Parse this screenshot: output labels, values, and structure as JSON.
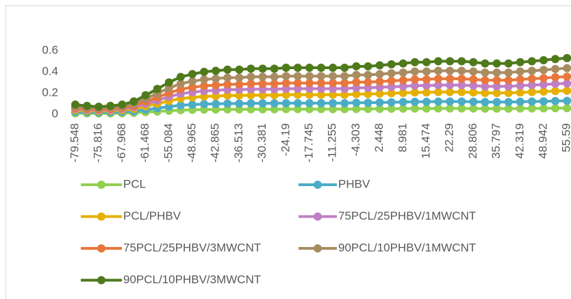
{
  "chart_data": {
    "type": "line",
    "stacked": true,
    "categories": [
      "-79.548",
      null,
      "-75.816",
      null,
      "-67.968",
      null,
      "-61.468",
      null,
      "-55.084",
      null,
      "-48.965",
      null,
      "-42.865",
      null,
      "-36.513",
      null,
      "-30.381",
      null,
      "-24.19",
      null,
      "-17.745",
      null,
      "-11.255",
      null,
      "-4.303",
      null,
      "2.448",
      null,
      "8.981",
      null,
      "15.474",
      null,
      "22.29",
      null,
      "28.806",
      null,
      "35.797",
      null,
      "42.319",
      null,
      "48.942",
      null,
      "55.59"
    ],
    "series": [
      {
        "name": "PCL",
        "color": "#92d050",
        "values": [
          0.01,
          0.009,
          0.008,
          0.009,
          0.01,
          0.013,
          0.02,
          0.026,
          0.033,
          0.039,
          0.042,
          0.044,
          0.045,
          0.046,
          0.046,
          0.047,
          0.047,
          0.047,
          0.048,
          0.048,
          0.048,
          0.048,
          0.048,
          0.048,
          0.05,
          0.05,
          0.051,
          0.052,
          0.053,
          0.054,
          0.054,
          0.055,
          0.055,
          0.055,
          0.054,
          0.053,
          0.053,
          0.053,
          0.054,
          0.055,
          0.056,
          0.057,
          0.058
        ]
      },
      {
        "name": "PHBV",
        "color": "#4bacc6",
        "values": [
          0.012,
          0.01,
          0.009,
          0.01,
          0.012,
          0.016,
          0.023,
          0.031,
          0.039,
          0.046,
          0.049,
          0.052,
          0.053,
          0.055,
          0.055,
          0.056,
          0.056,
          0.056,
          0.057,
          0.057,
          0.057,
          0.057,
          0.057,
          0.057,
          0.059,
          0.059,
          0.06,
          0.061,
          0.062,
          0.064,
          0.064,
          0.065,
          0.065,
          0.065,
          0.064,
          0.062,
          0.062,
          0.062,
          0.064,
          0.065,
          0.066,
          0.068,
          0.069
        ]
      },
      {
        "name": "PCL/PHBV",
        "color": "#e6b000",
        "values": [
          0.016,
          0.014,
          0.013,
          0.014,
          0.016,
          0.022,
          0.032,
          0.043,
          0.054,
          0.063,
          0.068,
          0.072,
          0.074,
          0.076,
          0.076,
          0.077,
          0.077,
          0.077,
          0.079,
          0.079,
          0.079,
          0.079,
          0.079,
          0.079,
          0.081,
          0.081,
          0.083,
          0.085,
          0.086,
          0.088,
          0.088,
          0.09,
          0.09,
          0.09,
          0.088,
          0.086,
          0.086,
          0.086,
          0.088,
          0.09,
          0.092,
          0.094,
          0.095
        ]
      },
      {
        "name": "75PCL/25PHBV/1MWCNT",
        "color": "#c07fc4",
        "values": [
          0.012,
          0.01,
          0.009,
          0.01,
          0.012,
          0.016,
          0.023,
          0.031,
          0.039,
          0.046,
          0.049,
          0.052,
          0.053,
          0.055,
          0.055,
          0.056,
          0.056,
          0.056,
          0.057,
          0.057,
          0.057,
          0.057,
          0.057,
          0.057,
          0.059,
          0.059,
          0.06,
          0.061,
          0.062,
          0.064,
          0.064,
          0.065,
          0.065,
          0.065,
          0.064,
          0.062,
          0.062,
          0.062,
          0.064,
          0.065,
          0.066,
          0.068,
          0.069
        ]
      },
      {
        "name": "75PCL/25PHBV/3MWCNT",
        "color": "#e8773d",
        "values": [
          0.011,
          0.01,
          0.008,
          0.01,
          0.011,
          0.014,
          0.022,
          0.029,
          0.036,
          0.042,
          0.046,
          0.048,
          0.049,
          0.05,
          0.05,
          0.052,
          0.052,
          0.052,
          0.053,
          0.053,
          0.053,
          0.053,
          0.053,
          0.053,
          0.054,
          0.054,
          0.055,
          0.056,
          0.058,
          0.059,
          0.059,
          0.06,
          0.06,
          0.06,
          0.059,
          0.058,
          0.058,
          0.058,
          0.059,
          0.06,
          0.061,
          0.062,
          0.064
        ]
      },
      {
        "name": "90PCL/10PHBV/1MWCNT",
        "color": "#a98c62",
        "values": [
          0.014,
          0.012,
          0.011,
          0.012,
          0.014,
          0.018,
          0.027,
          0.036,
          0.045,
          0.053,
          0.057,
          0.06,
          0.062,
          0.063,
          0.063,
          0.065,
          0.065,
          0.065,
          0.066,
          0.066,
          0.066,
          0.066,
          0.066,
          0.066,
          0.068,
          0.068,
          0.069,
          0.071,
          0.072,
          0.074,
          0.074,
          0.075,
          0.075,
          0.075,
          0.074,
          0.072,
          0.072,
          0.072,
          0.074,
          0.075,
          0.077,
          0.078,
          0.08
        ]
      },
      {
        "name": "90PCL/10PHBV/3MWCNT",
        "color": "#4f7a1c",
        "values": [
          0.016,
          0.014,
          0.013,
          0.014,
          0.016,
          0.022,
          0.032,
          0.043,
          0.054,
          0.063,
          0.068,
          0.072,
          0.074,
          0.076,
          0.076,
          0.077,
          0.077,
          0.077,
          0.079,
          0.079,
          0.079,
          0.079,
          0.079,
          0.079,
          0.081,
          0.081,
          0.083,
          0.085,
          0.086,
          0.088,
          0.088,
          0.09,
          0.09,
          0.09,
          0.088,
          0.086,
          0.086,
          0.086,
          0.088,
          0.09,
          0.092,
          0.094,
          0.095
        ]
      }
    ],
    "ylim": [
      0,
      0.7
    ],
    "yticks": [
      0,
      0.2,
      0.4,
      0.6
    ],
    "grid": false
  }
}
